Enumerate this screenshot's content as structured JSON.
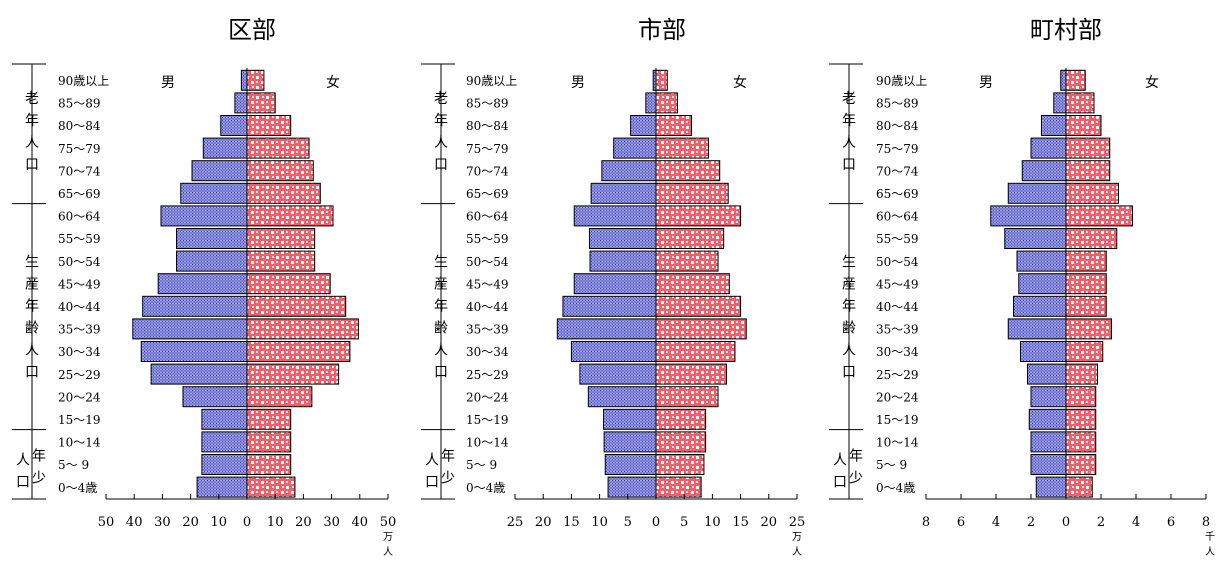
{
  "chart_data": [
    {
      "type": "bar",
      "title": "区部",
      "left_label": "男",
      "right_label": "女",
      "unit": [
        "万",
        "人"
      ],
      "xlim": [
        -50,
        50
      ],
      "ticks": [
        "50",
        "40",
        "30",
        "20",
        "10",
        "0",
        "10",
        "20",
        "30",
        "40",
        "50"
      ],
      "age_labels": [
        "0～4歳",
        "5～ 9",
        "10～14",
        "15～19",
        "20～24",
        "25～29",
        "30～34",
        "35～39",
        "40～44",
        "45～49",
        "50～54",
        "55～59",
        "60～64",
        "65～69",
        "70～74",
        "75～79",
        "80～84",
        "85～89",
        "90歳以上"
      ],
      "groups": [
        {
          "label": "年少人口",
          "from": 0,
          "to": 2
        },
        {
          "label": "生産年齢人口",
          "from": 3,
          "to": 12
        },
        {
          "label": "老年人口",
          "from": 13,
          "to": 18
        }
      ],
      "series": [
        {
          "name": "男",
          "values": [
            17.7,
            16,
            16,
            16,
            22.7,
            34,
            37.5,
            40.5,
            37,
            31.5,
            25,
            25,
            30.5,
            23.5,
            19.5,
            15.5,
            9.3,
            4.3,
            2
          ]
        },
        {
          "name": "女",
          "values": [
            17,
            15.5,
            15.5,
            15.5,
            23,
            32.5,
            36.5,
            39.5,
            35,
            29.5,
            24,
            24,
            30.5,
            26,
            23.5,
            22,
            15.5,
            10,
            6
          ]
        }
      ]
    },
    {
      "type": "bar",
      "title": "市部",
      "left_label": "男",
      "right_label": "女",
      "unit": [
        "万",
        "人"
      ],
      "xlim": [
        -25,
        25
      ],
      "ticks": [
        "25",
        "20",
        "15",
        "10",
        "5",
        "0",
        "5",
        "10",
        "15",
        "20",
        "25"
      ],
      "age_labels": [
        "0～4歳",
        "5～ 9",
        "10～14",
        "15～19",
        "20～24",
        "25～29",
        "30～34",
        "35～39",
        "40～44",
        "45～49",
        "50～54",
        "55～59",
        "60～64",
        "65～69",
        "70～74",
        "75～79",
        "80～84",
        "85～89",
        "90歳以上"
      ],
      "groups": [
        {
          "label": "年少人口",
          "from": 0,
          "to": 2
        },
        {
          "label": "生産年齢人口",
          "from": 3,
          "to": 12
        },
        {
          "label": "老年人口",
          "from": 13,
          "to": 18
        }
      ],
      "series": [
        {
          "name": "男",
          "values": [
            8.5,
            9,
            9.2,
            9.3,
            12,
            13.5,
            15,
            17.5,
            16.5,
            14.5,
            11.7,
            11.8,
            14.5,
            11.5,
            9.6,
            7.5,
            4.5,
            1.8,
            0.5
          ]
        },
        {
          "name": "女",
          "values": [
            8,
            8.5,
            8.8,
            8.8,
            11,
            12.5,
            14,
            16,
            15,
            13,
            11,
            12,
            15,
            12.8,
            11.3,
            9.3,
            6.3,
            3.8,
            2
          ]
        }
      ]
    },
    {
      "type": "bar",
      "title": "町村部",
      "left_label": "男",
      "right_label": "女",
      "unit": [
        "千",
        "人"
      ],
      "xlim": [
        -8,
        8
      ],
      "ticks": [
        "8",
        "6",
        "4",
        "2",
        "0",
        "2",
        "4",
        "6",
        "8"
      ],
      "age_labels": [
        "0～4歳",
        "5～ 9",
        "10～14",
        "15～19",
        "20～24",
        "25～29",
        "30～34",
        "35～39",
        "40～44",
        "45～49",
        "50～54",
        "55～59",
        "60～64",
        "65～69",
        "70～74",
        "75～79",
        "80～84",
        "85～89",
        "90歳以上"
      ],
      "groups": [
        {
          "label": "年少人口",
          "from": 0,
          "to": 2
        },
        {
          "label": "生産年齢人口",
          "from": 3,
          "to": 12
        },
        {
          "label": "老年人口",
          "from": 13,
          "to": 18
        }
      ],
      "series": [
        {
          "name": "男",
          "values": [
            1.7,
            2,
            2,
            2.1,
            2,
            2.2,
            2.6,
            3.3,
            3,
            2.7,
            2.8,
            3.5,
            4.3,
            3.3,
            2.5,
            2,
            1.4,
            0.7,
            0.3
          ]
        },
        {
          "name": "女",
          "values": [
            1.5,
            1.7,
            1.7,
            1.7,
            1.7,
            1.8,
            2.1,
            2.6,
            2.3,
            2.3,
            2.3,
            2.9,
            3.8,
            3,
            2.5,
            2.5,
            2,
            1.6,
            1.1
          ]
        }
      ]
    }
  ]
}
